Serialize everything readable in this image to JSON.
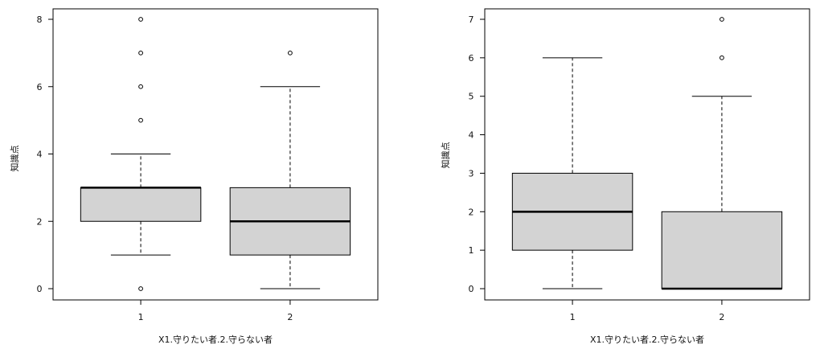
{
  "chart_data": [
    {
      "type": "boxplot",
      "xlabel": "X1.守りたい者.2.守らない者",
      "ylabel": "知識点",
      "ylim": [
        0,
        8
      ],
      "yticks": [
        0,
        2,
        4,
        6,
        8
      ],
      "categories": [
        "1",
        "2"
      ],
      "boxes": [
        {
          "category": "1",
          "whisker_low": 1,
          "q1": 2,
          "median": 3,
          "q3": 3,
          "whisker_high": 4,
          "outliers": [
            0,
            5,
            6,
            7,
            8
          ]
        },
        {
          "category": "2",
          "whisker_low": 0,
          "q1": 1,
          "median": 2,
          "q3": 3,
          "whisker_high": 6,
          "outliers": [
            7
          ]
        }
      ],
      "box_fill": "#d3d3d3",
      "grid": false
    },
    {
      "type": "boxplot",
      "xlabel": "X1.守りたい者.2.守らない者",
      "ylabel": "知識点",
      "ylim": [
        0,
        7
      ],
      "yticks": [
        0,
        1,
        2,
        3,
        4,
        5,
        6,
        7
      ],
      "categories": [
        "1",
        "2"
      ],
      "boxes": [
        {
          "category": "1",
          "whisker_low": 0,
          "q1": 1,
          "median": 2,
          "q3": 3,
          "whisker_high": 6,
          "outliers": []
        },
        {
          "category": "2",
          "whisker_low": 0,
          "q1": 0,
          "median": 0,
          "q3": 2,
          "whisker_high": 5,
          "outliers": [
            6,
            7
          ]
        }
      ],
      "box_fill": "#d3d3d3",
      "grid": false
    }
  ]
}
